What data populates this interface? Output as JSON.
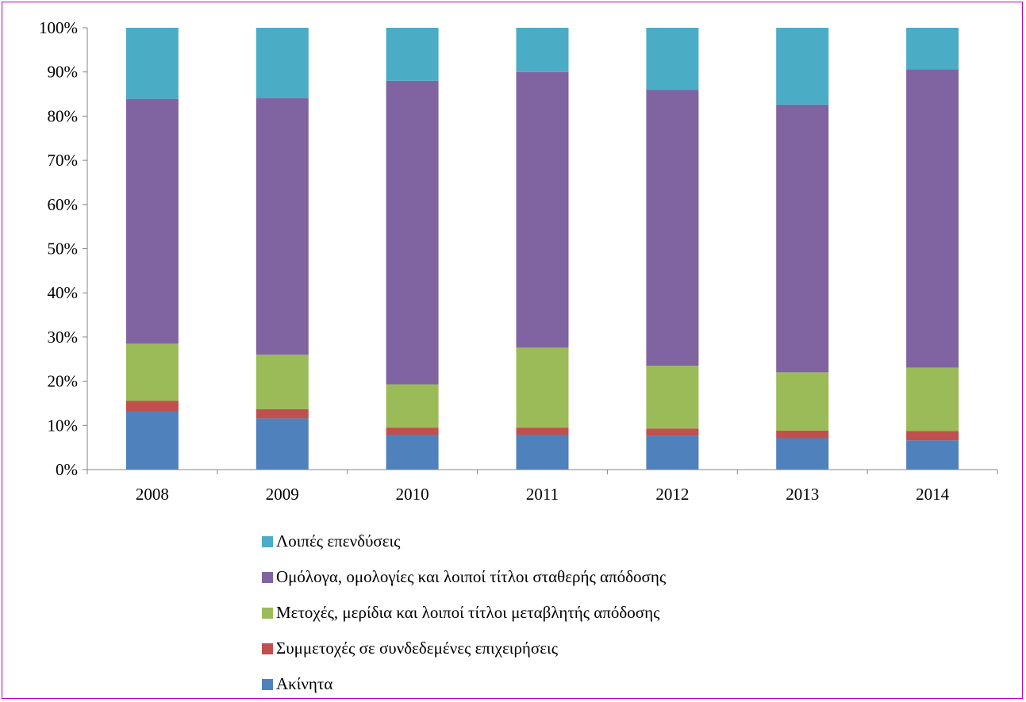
{
  "chart_data": {
    "type": "stacked-bar-100",
    "categories": [
      "2008",
      "2009",
      "2010",
      "2011",
      "2012",
      "2013",
      "2014"
    ],
    "y_ticks": [
      "0%",
      "10%",
      "20%",
      "30%",
      "40%",
      "50%",
      "60%",
      "70%",
      "80%",
      "90%",
      "100%"
    ],
    "ylim": [
      0,
      100
    ],
    "grid": false,
    "legend_position": "bottom",
    "series": [
      {
        "name": "Ακίνητα",
        "color": "#4f81bd",
        "values": [
          13.2,
          11.6,
          7.9,
          7.9,
          7.7,
          7.1,
          6.6
        ]
      },
      {
        "name": "Συμμετοχές σε συνδεδεμένες επιχειρήσεις",
        "color": "#c0504d",
        "values": [
          2.4,
          2.1,
          1.6,
          1.6,
          1.6,
          1.7,
          2.1
        ]
      },
      {
        "name": "Μετοχές, μερίδια και λοιποί τίτλοι μεταβλητής απόδοσης",
        "color": "#9bbb59",
        "values": [
          12.9,
          12.3,
          9.8,
          18.1,
          14.2,
          13.2,
          14.4
        ]
      },
      {
        "name": "Ομόλογα, ομολογίες και λοιποί τίτλοι σταθερής απόδοσης",
        "color": "#8064a2",
        "values": [
          55.4,
          58.1,
          68.7,
          62.4,
          62.4,
          60.6,
          67.5
        ]
      },
      {
        "name": "Λοιπές επενδύσεις",
        "color": "#4bacc6",
        "values": [
          16.1,
          15.9,
          12.0,
          10.0,
          14.1,
          17.4,
          9.4
        ]
      }
    ]
  },
  "legend_items": [
    {
      "label": "Λοιπές επενδύσεις",
      "color": "#4bacc6"
    },
    {
      "label": "Ομόλογα, ομολογίες και λοιποί τίτλοι σταθερής απόδοσης",
      "color": "#8064a2"
    },
    {
      "label": "Μετοχές, μερίδια και λοιποί τίτλοι μεταβλητής απόδοσης",
      "color": "#9bbb59"
    },
    {
      "label": "Συμμετοχές σε συνδεδεμένες επιχειρήσεις",
      "color": "#c0504d"
    },
    {
      "label": "Ακίνητα",
      "color": "#4f81bd"
    }
  ]
}
